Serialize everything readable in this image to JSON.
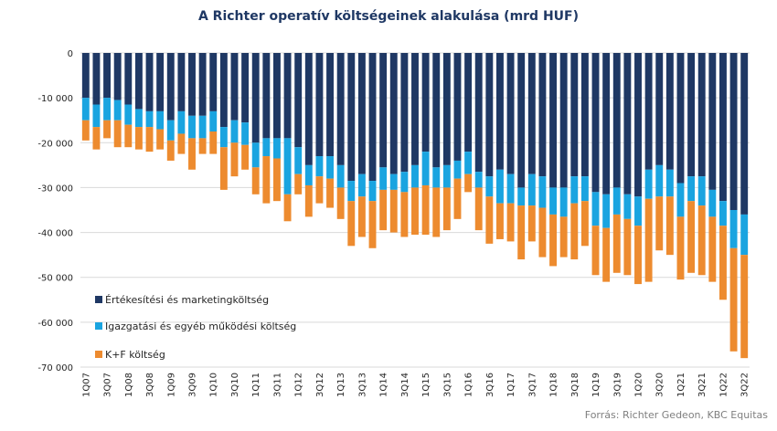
{
  "chart_data": {
    "type": "bar",
    "stacked": true,
    "title": "A Richter operatív költségeinek alakulása (mrd HUF)",
    "source": "Forrás: Richter Gedeon, KBC Equitas",
    "ylim": [
      -70000,
      0
    ],
    "yticks": [
      0,
      -10000,
      -20000,
      -30000,
      -40000,
      -50000,
      -60000,
      -70000
    ],
    "ytick_labels": [
      "0",
      "-10 000",
      "-20 000",
      "-30 000",
      "-40 000",
      "-50 000",
      "-60 000",
      "-70 000"
    ],
    "grid": true,
    "legend": "bottom-left inside",
    "categories": [
      "1Q07",
      "2Q07",
      "3Q07",
      "4Q07",
      "1Q08",
      "2Q08",
      "3Q08",
      "4Q08",
      "1Q09",
      "2Q09",
      "3Q09",
      "4Q09",
      "1Q10",
      "2Q10",
      "3Q10",
      "4Q10",
      "1Q11",
      "2Q11",
      "3Q11",
      "4Q11",
      "1Q12",
      "2Q12",
      "3Q12",
      "4Q12",
      "1Q13",
      "2Q13",
      "3Q13",
      "4Q13",
      "1Q14",
      "2Q14",
      "3Q14",
      "4Q14",
      "1Q15",
      "2Q15",
      "3Q15",
      "4Q15",
      "1Q16",
      "2Q16",
      "3Q16",
      "4Q16",
      "1Q17",
      "2Q17",
      "3Q17",
      "4Q17",
      "1Q18",
      "2Q18",
      "3Q18",
      "4Q18",
      "1Q19",
      "2Q19",
      "3Q19",
      "4Q19",
      "1Q20",
      "2Q20",
      "3Q20",
      "4Q20",
      "1Q21",
      "2Q21",
      "3Q21",
      "4Q21",
      "1Q22",
      "2Q22",
      "3Q22"
    ],
    "series": [
      {
        "name": "Értékesítési és marketingköltség",
        "color": "#1f3864",
        "values": [
          -10000,
          -11500,
          -10000,
          -10500,
          -11500,
          -12500,
          -13000,
          -13000,
          -15000,
          -13000,
          -14000,
          -14000,
          -13000,
          -16500,
          -15000,
          -15500,
          -20000,
          -19000,
          -19000,
          -19000,
          -21000,
          -25000,
          -23000,
          -23000,
          -25000,
          -28500,
          -27000,
          -28500,
          -25500,
          -27000,
          -26500,
          -25000,
          -22000,
          -25500,
          -25000,
          -24000,
          -22000,
          -26500,
          -27500,
          -26000,
          -27000,
          -30000,
          -27000,
          -27500,
          -30000,
          -30000,
          -27500,
          -27500,
          -31000,
          -31500,
          -30000,
          -31500,
          -32000,
          -26000,
          -25000,
          -26000,
          -29000,
          -27500,
          -27500,
          -30500,
          -33000,
          -35000,
          -36000
        ]
      },
      {
        "name": "Igazgatási és egyéb működési költség",
        "color": "#1aa4e0",
        "values": [
          -5000,
          -5000,
          -5000,
          -4500,
          -4500,
          -4000,
          -3500,
          -4000,
          -4500,
          -5000,
          -5000,
          -5000,
          -4500,
          -4500,
          -5000,
          -5000,
          -5500,
          -4000,
          -4500,
          -12500,
          -6000,
          -4500,
          -4500,
          -5000,
          -5000,
          -4500,
          -5000,
          -4500,
          -5000,
          -3500,
          -4500,
          -5000,
          -7500,
          -4500,
          -5000,
          -4000,
          -5000,
          -3500,
          -4500,
          -7500,
          -6500,
          -4000,
          -7000,
          -7000,
          -6000,
          -6500,
          -6000,
          -5500,
          -7500,
          -7500,
          -6000,
          -5500,
          -6500,
          -6500,
          -7000,
          -6000,
          -7500,
          -5500,
          -6500,
          -6000,
          -5500,
          -8500,
          -9000
        ]
      },
      {
        "name": "K+F költség",
        "color": "#ed8b2f",
        "values": [
          -4500,
          -5000,
          -4000,
          -6000,
          -5000,
          -5000,
          -5500,
          -4500,
          -4500,
          -4500,
          -7000,
          -3500,
          -5000,
          -9500,
          -7500,
          -5500,
          -6000,
          -10500,
          -9500,
          -6000,
          -4500,
          -7000,
          -6000,
          -6500,
          -7000,
          -10000,
          -9000,
          -10500,
          -9000,
          -9500,
          -10000,
          -10500,
          -11000,
          -11000,
          -9500,
          -9000,
          -4000,
          -9500,
          -10500,
          -8000,
          -8500,
          -12000,
          -8000,
          -11000,
          -11500,
          -9000,
          -12500,
          -10000,
          -11000,
          -12000,
          -13000,
          -12500,
          -13000,
          -18500,
          -12000,
          -13000,
          -14000,
          -16000,
          -15500,
          -14500,
          -16500,
          -23000,
          -23000
        ]
      }
    ]
  }
}
